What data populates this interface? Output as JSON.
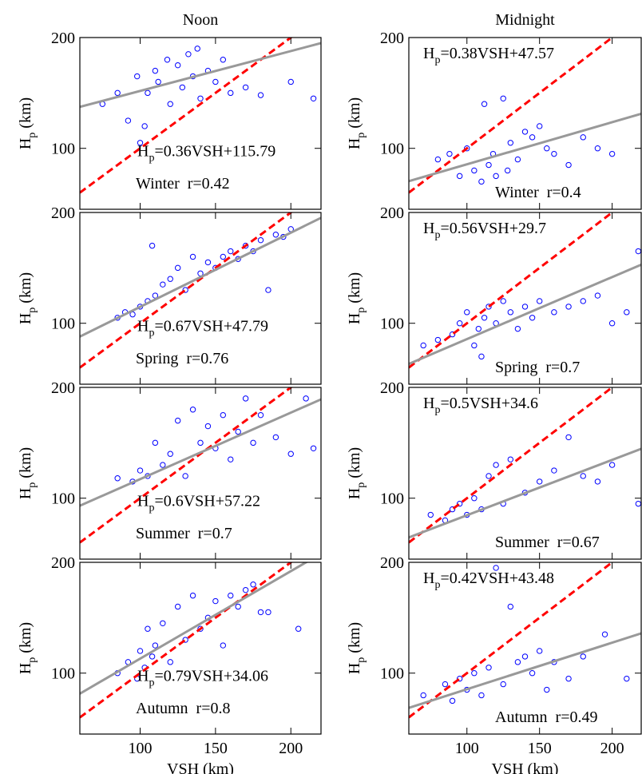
{
  "chart_data": [
    {
      "type": "scatter",
      "title": "Noon",
      "ylabel": {
        "main": "H",
        "sub": "p",
        "unit": " (km)"
      },
      "equation": {
        "lhs": "H",
        "sub": "p",
        "rhs": "=0.36VSH+115.79"
      },
      "annotation": "Winter  r=0.42",
      "fit": {
        "slope": 0.36,
        "intercept": 115.79
      },
      "xlim": [
        60,
        220
      ],
      "ylim": [
        45,
        200
      ],
      "xticks": [
        100,
        150,
        200
      ],
      "yticks": [
        100,
        200
      ],
      "x": [
        75,
        85,
        92,
        98,
        100,
        103,
        105,
        110,
        112,
        118,
        120,
        125,
        128,
        132,
        135,
        138,
        140,
        145,
        150,
        155,
        160,
        170,
        180,
        200,
        215
      ],
      "y": [
        140,
        150,
        125,
        165,
        105,
        120,
        150,
        170,
        160,
        180,
        140,
        175,
        155,
        185,
        165,
        190,
        145,
        170,
        160,
        180,
        150,
        155,
        148,
        160,
        145
      ]
    },
    {
      "type": "scatter",
      "title": "Midnight",
      "ylabel": {
        "main": "H",
        "sub": "p",
        "unit": " (km)"
      },
      "equation": {
        "lhs": "H",
        "sub": "p",
        "rhs": "=0.38VSH+47.57"
      },
      "annotation": "Winter  r=0.4",
      "fit": {
        "slope": 0.38,
        "intercept": 47.57
      },
      "xlim": [
        60,
        220
      ],
      "ylim": [
        45,
        200
      ],
      "xticks": [
        100,
        150,
        200
      ],
      "yticks": [
        100,
        200
      ],
      "x": [
        80,
        88,
        95,
        100,
        105,
        110,
        112,
        115,
        118,
        120,
        125,
        128,
        130,
        135,
        140,
        145,
        150,
        155,
        160,
        170,
        180,
        190,
        200
      ],
      "y": [
        90,
        95,
        75,
        100,
        80,
        70,
        140,
        85,
        95,
        75,
        145,
        80,
        105,
        90,
        115,
        110,
        120,
        100,
        95,
        85,
        110,
        100,
        95
      ]
    },
    {
      "type": "scatter",
      "ylabel": {
        "main": "H",
        "sub": "p",
        "unit": " (km)"
      },
      "equation": {
        "lhs": "H",
        "sub": "p",
        "rhs": "=0.67VSH+47.79"
      },
      "annotation": "Spring  r=0.76",
      "fit": {
        "slope": 0.67,
        "intercept": 47.79
      },
      "xlim": [
        60,
        220
      ],
      "ylim": [
        45,
        200
      ],
      "xticks": [
        100,
        150,
        200
      ],
      "yticks": [
        100,
        200
      ],
      "x": [
        85,
        90,
        95,
        100,
        105,
        108,
        110,
        115,
        120,
        125,
        130,
        135,
        140,
        145,
        150,
        155,
        160,
        165,
        170,
        175,
        180,
        185,
        190,
        195,
        200
      ],
      "y": [
        105,
        110,
        108,
        115,
        120,
        170,
        125,
        135,
        140,
        150,
        130,
        160,
        145,
        155,
        150,
        160,
        165,
        158,
        170,
        165,
        175,
        130,
        180,
        178,
        185
      ]
    },
    {
      "type": "scatter",
      "ylabel": {
        "main": "H",
        "sub": "p",
        "unit": " (km)"
      },
      "equation": {
        "lhs": "H",
        "sub": "p",
        "rhs": "=0.56VSH+29.7"
      },
      "annotation": "Spring  r=0.7",
      "fit": {
        "slope": 0.56,
        "intercept": 29.7
      },
      "xlim": [
        60,
        220
      ],
      "ylim": [
        45,
        200
      ],
      "xticks": [
        100,
        150,
        200
      ],
      "yticks": [
        100,
        200
      ],
      "x": [
        70,
        80,
        90,
        95,
        100,
        105,
        108,
        110,
        112,
        115,
        120,
        125,
        130,
        135,
        140,
        145,
        150,
        160,
        170,
        180,
        190,
        200,
        210,
        218
      ],
      "y": [
        80,
        85,
        90,
        100,
        110,
        80,
        95,
        70,
        105,
        115,
        100,
        120,
        110,
        95,
        115,
        105,
        120,
        110,
        115,
        120,
        125,
        100,
        110,
        165
      ]
    },
    {
      "type": "scatter",
      "ylabel": {
        "main": "H",
        "sub": "p",
        "unit": " (km)"
      },
      "equation": {
        "lhs": "H",
        "sub": "p",
        "rhs": "=0.6VSH+57.22"
      },
      "annotation": "Summer  r=0.7",
      "fit": {
        "slope": 0.6,
        "intercept": 57.22
      },
      "xlim": [
        60,
        220
      ],
      "ylim": [
        45,
        200
      ],
      "xticks": [
        100,
        150,
        200
      ],
      "yticks": [
        100,
        200
      ],
      "x": [
        85,
        95,
        100,
        105,
        110,
        115,
        120,
        125,
        130,
        135,
        140,
        145,
        150,
        155,
        160,
        165,
        170,
        175,
        180,
        190,
        200,
        210,
        215
      ],
      "y": [
        118,
        115,
        125,
        120,
        150,
        130,
        140,
        170,
        120,
        180,
        150,
        165,
        145,
        175,
        135,
        160,
        190,
        150,
        175,
        155,
        140,
        190,
        145
      ]
    },
    {
      "type": "scatter",
      "ylabel": {
        "main": "H",
        "sub": "p",
        "unit": " (km)"
      },
      "equation": {
        "lhs": "H",
        "sub": "p",
        "rhs": "=0.5VSH+34.6"
      },
      "annotation": "Summer  r=0.67",
      "fit": {
        "slope": 0.5,
        "intercept": 34.6
      },
      "xlim": [
        60,
        220
      ],
      "ylim": [
        45,
        200
      ],
      "xticks": [
        100,
        150,
        200
      ],
      "yticks": [
        100,
        200
      ],
      "x": [
        75,
        85,
        90,
        95,
        100,
        105,
        110,
        115,
        120,
        125,
        130,
        140,
        150,
        160,
        170,
        180,
        190,
        200,
        218
      ],
      "y": [
        85,
        80,
        90,
        95,
        85,
        100,
        90,
        120,
        130,
        95,
        135,
        105,
        115,
        125,
        155,
        120,
        115,
        130,
        95
      ]
    },
    {
      "type": "scatter",
      "ylabel": {
        "main": "H",
        "sub": "p",
        "unit": " (km)"
      },
      "xlabel": "VSH (km)",
      "equation": {
        "lhs": "H",
        "sub": "p",
        "rhs": "=0.79VSH+34.06"
      },
      "annotation": "Autumn  r=0.8",
      "fit": {
        "slope": 0.79,
        "intercept": 34.06
      },
      "xlim": [
        60,
        220
      ],
      "ylim": [
        45,
        200
      ],
      "xticks": [
        100,
        150,
        200
      ],
      "yticks": [
        100,
        200
      ],
      "x": [
        85,
        92,
        98,
        100,
        103,
        105,
        108,
        110,
        115,
        120,
        125,
        130,
        135,
        140,
        145,
        150,
        155,
        160,
        165,
        170,
        175,
        180,
        185,
        205
      ],
      "y": [
        100,
        110,
        95,
        120,
        105,
        140,
        115,
        125,
        145,
        110,
        160,
        130,
        170,
        140,
        150,
        165,
        125,
        170,
        160,
        175,
        180,
        155,
        155,
        140
      ]
    },
    {
      "type": "scatter",
      "ylabel": {
        "main": "H",
        "sub": "p",
        "unit": " (km)"
      },
      "xlabel": "VSH (km)",
      "equation": {
        "lhs": "H",
        "sub": "p",
        "rhs": "=0.42VSH+43.48"
      },
      "annotation": "Autumn  r=0.49",
      "fit": {
        "slope": 0.42,
        "intercept": 43.48
      },
      "xlim": [
        60,
        220
      ],
      "ylim": [
        45,
        200
      ],
      "xticks": [
        100,
        150,
        200
      ],
      "yticks": [
        100,
        200
      ],
      "x": [
        70,
        85,
        90,
        95,
        100,
        105,
        110,
        115,
        120,
        125,
        130,
        135,
        140,
        145,
        150,
        155,
        160,
        170,
        180,
        195,
        210
      ],
      "y": [
        80,
        90,
        75,
        95,
        85,
        100,
        80,
        105,
        195,
        90,
        160,
        110,
        115,
        100,
        120,
        85,
        110,
        95,
        115,
        135,
        95
      ]
    }
  ]
}
